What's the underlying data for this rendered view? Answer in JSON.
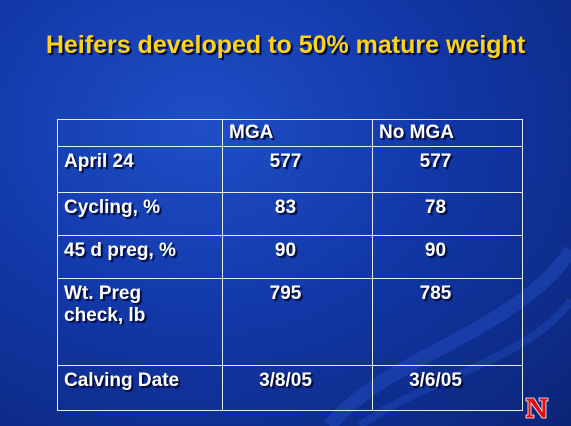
{
  "header": {
    "title": "Heifers developed to 50% mature weight"
  },
  "table": {
    "columns": [
      "MGA",
      "No MGA"
    ],
    "rows": [
      {
        "label": "April 24",
        "values": [
          577,
          577
        ]
      },
      {
        "label": "Cycling, %",
        "values": [
          83,
          78
        ]
      },
      {
        "label": "45 d preg, %",
        "values": [
          90,
          90
        ]
      },
      {
        "label": "Wt. Preg check, lb",
        "values": [
          795,
          785
        ]
      },
      {
        "label": "Calving Date",
        "values": [
          "3/8/05",
          "3/6/05"
        ]
      }
    ]
  }
}
